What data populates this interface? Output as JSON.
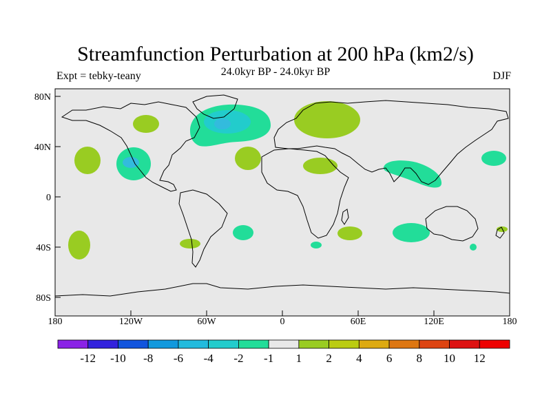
{
  "title": "Streamfunction Perturbation at 200 hPa (km2/s)",
  "left_label": "Expt = tebky-teany",
  "center_label": "24.0kyr BP - 24.0kyr BP",
  "right_label": "DJF",
  "colors": {
    "ocean": "#e8e8e8",
    "coast": "#000000",
    "positive_light": "#99cc22",
    "negative_light": "#22dd99",
    "negative_mid": "#22cccc",
    "negative_deep": "#33bbdd"
  },
  "map": {
    "y_ticks": [
      "80N",
      "40N",
      "0",
      "40S",
      "80S"
    ],
    "x_ticks": [
      "180",
      "120W",
      "60W",
      "0",
      "60E",
      "120E",
      "180"
    ]
  },
  "colorbar": {
    "labels": [
      "-12",
      "-10",
      "-8",
      "-6",
      "-4",
      "-2",
      "-1",
      "1",
      "2",
      "4",
      "6",
      "8",
      "10",
      "12"
    ],
    "colors": [
      "#8a22e6",
      "#3322dd",
      "#1155dd",
      "#1199dd",
      "#22bbdd",
      "#22cccc",
      "#22dd99",
      "#e8e8e8",
      "#99cc22",
      "#bbcc11",
      "#ddaa11",
      "#dd7711",
      "#dd4411",
      "#dd1111",
      "#ee0000"
    ]
  }
}
